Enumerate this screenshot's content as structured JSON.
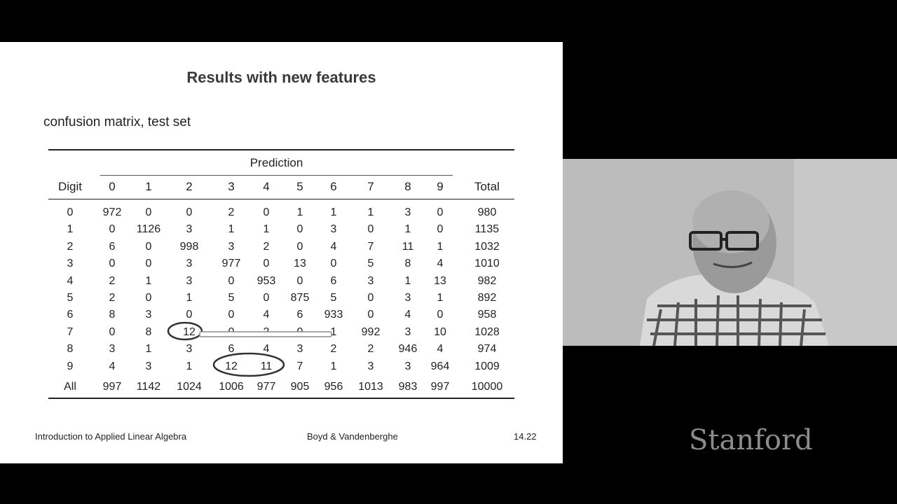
{
  "slide": {
    "title": "Results with new features",
    "subtitle": "confusion matrix, test set",
    "table": {
      "prediction_label": "Prediction",
      "row_header": "Digit",
      "total_header": "Total",
      "columns": [
        "0",
        "1",
        "2",
        "3",
        "4",
        "5",
        "6",
        "7",
        "8",
        "9"
      ],
      "rows": [
        {
          "label": "0",
          "values": [
            "972",
            "0",
            "0",
            "2",
            "0",
            "1",
            "1",
            "1",
            "3",
            "0"
          ],
          "total": "980"
        },
        {
          "label": "1",
          "values": [
            "0",
            "1126",
            "3",
            "1",
            "1",
            "0",
            "3",
            "0",
            "1",
            "0"
          ],
          "total": "1135"
        },
        {
          "label": "2",
          "values": [
            "6",
            "0",
            "998",
            "3",
            "2",
            "0",
            "4",
            "7",
            "11",
            "1"
          ],
          "total": "1032"
        },
        {
          "label": "3",
          "values": [
            "0",
            "0",
            "3",
            "977",
            "0",
            "13",
            "0",
            "5",
            "8",
            "4"
          ],
          "total": "1010"
        },
        {
          "label": "4",
          "values": [
            "2",
            "1",
            "3",
            "0",
            "953",
            "0",
            "6",
            "3",
            "1",
            "13"
          ],
          "total": "982"
        },
        {
          "label": "5",
          "values": [
            "2",
            "0",
            "1",
            "5",
            "0",
            "875",
            "5",
            "0",
            "3",
            "1"
          ],
          "total": "892"
        },
        {
          "label": "6",
          "values": [
            "8",
            "3",
            "0",
            "0",
            "4",
            "6",
            "933",
            "0",
            "4",
            "0"
          ],
          "total": "958"
        },
        {
          "label": "7",
          "values": [
            "0",
            "8",
            "12",
            "0",
            "2",
            "0",
            "1",
            "992",
            "3",
            "10"
          ],
          "total": "1028"
        },
        {
          "label": "8",
          "values": [
            "3",
            "1",
            "3",
            "6",
            "4",
            "3",
            "2",
            "2",
            "946",
            "4"
          ],
          "total": "974"
        },
        {
          "label": "9",
          "values": [
            "4",
            "3",
            "1",
            "12",
            "11",
            "7",
            "1",
            "3",
            "3",
            "964"
          ],
          "total": "1009"
        },
        {
          "label": "All",
          "values": [
            "997",
            "1142",
            "1024",
            "1006",
            "977",
            "905",
            "956",
            "1013",
            "983",
            "997"
          ],
          "total": "10000"
        }
      ]
    },
    "footer": {
      "left": "Introduction to Applied Linear Algebra",
      "center": "Boyd & Vandenberghe",
      "right": "14.22"
    }
  },
  "watermark": "Stanford"
}
